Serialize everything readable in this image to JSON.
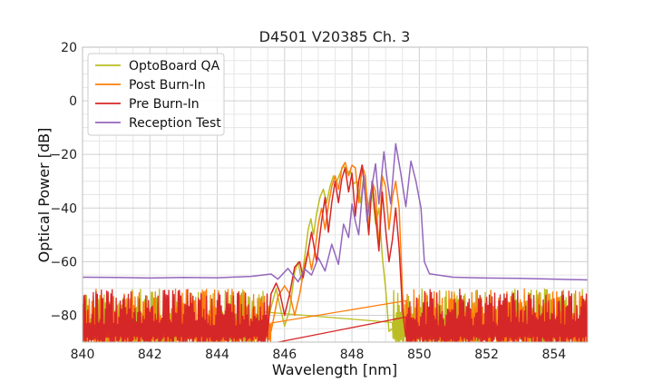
{
  "chart_data": {
    "type": "line",
    "title": "D4501 V20385 Ch. 3",
    "xlabel": "Wavelength [nm]",
    "ylabel": "Optical Power [dB]",
    "xlim": [
      840,
      855
    ],
    "ylim": [
      -90,
      20
    ],
    "xticks": [
      840,
      842,
      844,
      846,
      848,
      850,
      852,
      854
    ],
    "xtick_labels": [
      "840",
      "842",
      "844",
      "846",
      "848",
      "850",
      "852",
      "854"
    ],
    "yticks": [
      20,
      0,
      -20,
      -40,
      -60,
      -80
    ],
    "ytick_labels": [
      "20",
      "0",
      "−20",
      "−40",
      "−60",
      "−80"
    ],
    "grid": true,
    "legend_position": "top-left",
    "series": [
      {
        "name": "OptoBoard QA",
        "color": "#bcbd22",
        "noise_floor": true,
        "points": [
          [
            845.4,
            -88
          ],
          [
            845.6,
            -77
          ],
          [
            845.75,
            -70
          ],
          [
            845.85,
            -76
          ],
          [
            846.0,
            -84
          ],
          [
            846.15,
            -78
          ],
          [
            846.3,
            -64
          ],
          [
            846.4,
            -60
          ],
          [
            846.5,
            -67
          ],
          [
            846.6,
            -58
          ],
          [
            846.7,
            -48
          ],
          [
            846.78,
            -44
          ],
          [
            846.86,
            -50
          ],
          [
            846.95,
            -42
          ],
          [
            847.05,
            -36
          ],
          [
            847.15,
            -33
          ],
          [
            847.25,
            -38
          ],
          [
            847.35,
            -32
          ],
          [
            847.45,
            -28
          ],
          [
            847.55,
            -30
          ],
          [
            847.65,
            -27
          ],
          [
            847.75,
            -24
          ],
          [
            847.85,
            -27
          ],
          [
            847.95,
            -26
          ],
          [
            848.05,
            -31
          ],
          [
            848.15,
            -30
          ],
          [
            848.25,
            -38
          ],
          [
            848.35,
            -28
          ],
          [
            848.5,
            -40
          ],
          [
            848.6,
            -34
          ],
          [
            848.7,
            -46
          ],
          [
            848.8,
            -40
          ],
          [
            848.9,
            -58
          ],
          [
            849.0,
            -70
          ],
          [
            849.1,
            -86
          ],
          [
            849.2,
            -85
          ]
        ]
      },
      {
        "name": "Post Burn-In",
        "color": "#ff7f0e",
        "noise_floor": true,
        "points": [
          [
            845.6,
            -86
          ],
          [
            845.8,
            -73
          ],
          [
            846.0,
            -69
          ],
          [
            846.15,
            -72
          ],
          [
            846.3,
            -80
          ],
          [
            846.45,
            -72
          ],
          [
            846.6,
            -61
          ],
          [
            846.7,
            -56
          ],
          [
            846.8,
            -63
          ],
          [
            846.9,
            -56
          ],
          [
            847.0,
            -46
          ],
          [
            847.1,
            -40
          ],
          [
            847.2,
            -48
          ],
          [
            847.3,
            -39
          ],
          [
            847.4,
            -32
          ],
          [
            847.5,
            -28
          ],
          [
            847.6,
            -33
          ],
          [
            847.7,
            -25
          ],
          [
            847.8,
            -23
          ],
          [
            847.9,
            -28
          ],
          [
            848.0,
            -24
          ],
          [
            848.1,
            -25
          ],
          [
            848.2,
            -38
          ],
          [
            848.3,
            -24
          ],
          [
            848.4,
            -28
          ],
          [
            848.5,
            -48
          ],
          [
            848.6,
            -30
          ],
          [
            848.7,
            -34
          ],
          [
            848.8,
            -55
          ],
          [
            848.9,
            -28
          ],
          [
            849.0,
            -32
          ],
          [
            849.1,
            -48
          ],
          [
            849.2,
            -36
          ],
          [
            849.3,
            -30
          ],
          [
            849.4,
            -40
          ],
          [
            849.5,
            -72
          ],
          [
            849.6,
            -86
          ]
        ]
      },
      {
        "name": "Pre Burn-In",
        "color": "#d62728",
        "noise_floor": true,
        "points": [
          [
            845.5,
            -86
          ],
          [
            845.6,
            -72
          ],
          [
            845.75,
            -68
          ],
          [
            845.85,
            -71
          ],
          [
            846.0,
            -80
          ],
          [
            846.15,
            -72
          ],
          [
            846.3,
            -62
          ],
          [
            846.45,
            -60
          ],
          [
            846.55,
            -66
          ],
          [
            846.7,
            -56
          ],
          [
            846.8,
            -49
          ],
          [
            846.95,
            -60
          ],
          [
            847.1,
            -45
          ],
          [
            847.2,
            -36
          ],
          [
            847.3,
            -49
          ],
          [
            847.4,
            -38
          ],
          [
            847.5,
            -30
          ],
          [
            847.6,
            -38
          ],
          [
            847.7,
            -29
          ],
          [
            847.8,
            -25
          ],
          [
            847.9,
            -34
          ],
          [
            848.0,
            -27
          ],
          [
            848.1,
            -43
          ],
          [
            848.2,
            -30
          ],
          [
            848.3,
            -24
          ],
          [
            848.4,
            -36
          ],
          [
            848.5,
            -50
          ],
          [
            848.6,
            -30
          ],
          [
            848.7,
            -43
          ],
          [
            848.8,
            -56
          ],
          [
            848.9,
            -34
          ],
          [
            849.0,
            -48
          ],
          [
            849.1,
            -60
          ],
          [
            849.2,
            -52
          ],
          [
            849.3,
            -40
          ],
          [
            849.4,
            -55
          ],
          [
            849.5,
            -78
          ],
          [
            849.6,
            -88
          ]
        ]
      },
      {
        "name": "Reception Test",
        "color": "#9467bd",
        "noise_floor": false,
        "points": [
          [
            840,
            -65.8
          ],
          [
            841,
            -65.9
          ],
          [
            842,
            -66.1
          ],
          [
            843,
            -65.9
          ],
          [
            844,
            -66.0
          ],
          [
            845,
            -65.5
          ],
          [
            845.6,
            -64.6
          ],
          [
            845.8,
            -66.5
          ],
          [
            846.1,
            -62.5
          ],
          [
            846.4,
            -67.5
          ],
          [
            846.6,
            -62.8
          ],
          [
            846.8,
            -65.0
          ],
          [
            847.0,
            -58.5
          ],
          [
            847.2,
            -63.5
          ],
          [
            847.4,
            -53.5
          ],
          [
            847.6,
            -61.0
          ],
          [
            847.75,
            -46.0
          ],
          [
            847.9,
            -51.0
          ],
          [
            848.0,
            -38.5
          ],
          [
            848.1,
            -45.0
          ],
          [
            848.2,
            -50.0
          ],
          [
            848.35,
            -28.0
          ],
          [
            848.45,
            -45.0
          ],
          [
            848.55,
            -35.0
          ],
          [
            848.7,
            -23.5
          ],
          [
            848.8,
            -38.5
          ],
          [
            848.95,
            -19.0
          ],
          [
            849.05,
            -30.0
          ],
          [
            849.15,
            -38.5
          ],
          [
            849.3,
            -16.0
          ],
          [
            849.45,
            -27.0
          ],
          [
            849.6,
            -39.5
          ],
          [
            849.75,
            -22.5
          ],
          [
            849.9,
            -30.0
          ],
          [
            850.05,
            -40.0
          ],
          [
            850.15,
            -60.0
          ],
          [
            850.3,
            -64.5
          ],
          [
            851,
            -65.8
          ],
          [
            852,
            -66.1
          ],
          [
            853,
            -66.2
          ],
          [
            854,
            -66.5
          ],
          [
            855,
            -66.8
          ]
        ]
      }
    ]
  }
}
